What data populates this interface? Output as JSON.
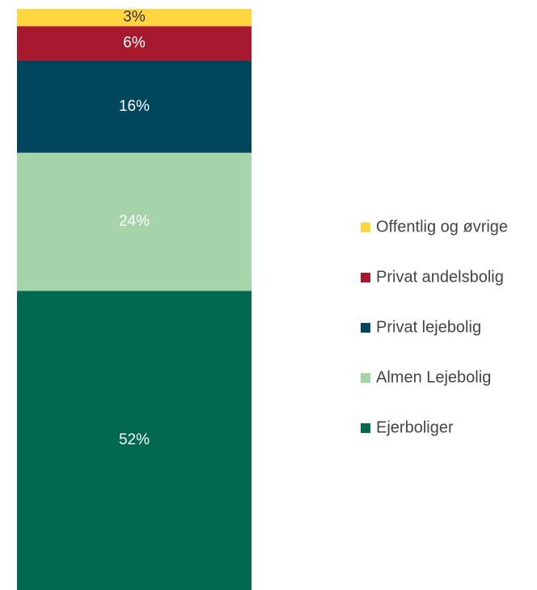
{
  "chart_data": {
    "type": "stacked_bar",
    "series": [
      {
        "name": "Ejerboliger",
        "color": "#00694f",
        "values": [
          52
        ],
        "value_labels": [
          "52%"
        ]
      },
      {
        "name": "Almen Lejebolig",
        "color": "#a5d4a9",
        "values": [
          24
        ],
        "value_labels": [
          "24%"
        ]
      },
      {
        "name": "Privat lejebolig",
        "color": "#00475e",
        "values": [
          16
        ],
        "value_labels": [
          "16%"
        ]
      },
      {
        "name": "Privat andelsbolig",
        "color": "#a6192e",
        "values": [
          6
        ],
        "value_labels": [
          "6%"
        ]
      },
      {
        "name": "Offentlig og øvrige",
        "color": "#ffd540",
        "values": [
          3
        ],
        "value_labels": [
          "3%"
        ]
      }
    ]
  }
}
